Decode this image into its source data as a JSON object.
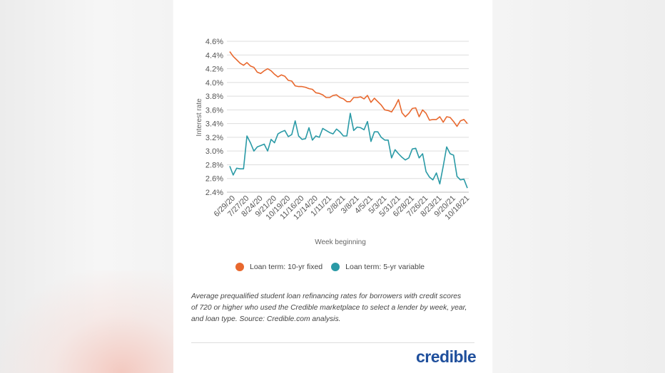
{
  "chart_data": {
    "type": "line",
    "title": "",
    "xlabel": "Week beginning",
    "ylabel": "Interest rate",
    "ylim": [
      2.4,
      4.6
    ],
    "yticks": [
      "2.4%",
      "2.6%",
      "2.8%",
      "3.0%",
      "3.2%",
      "3.4%",
      "3.6%",
      "3.8%",
      "4.0%",
      "4.2%",
      "4.4%",
      "4.6%"
    ],
    "grid": true,
    "legend_position": "bottom",
    "xtick_labels": [
      "6/29/20",
      "7/27/20",
      "8/24/20",
      "9/21/20",
      "10/19/20",
      "11/16/20",
      "12/14/20",
      "1/11/21",
      "2/8/21",
      "3/8/21",
      "4/5/21",
      "5/3/21",
      "5/31/21",
      "6/28/21",
      "7/26/21",
      "8/23/21",
      "9/20/21",
      "10/18/21"
    ],
    "x": [
      "6/29/20",
      "7/6/20",
      "7/13/20",
      "7/20/20",
      "7/27/20",
      "8/3/20",
      "8/10/20",
      "8/17/20",
      "8/24/20",
      "8/31/20",
      "9/7/20",
      "9/14/20",
      "9/21/20",
      "9/28/20",
      "10/5/20",
      "10/12/20",
      "10/19/20",
      "10/26/20",
      "11/2/20",
      "11/9/20",
      "11/16/20",
      "11/23/20",
      "11/30/20",
      "12/7/20",
      "12/14/20",
      "12/21/20",
      "12/28/20",
      "1/4/21",
      "1/11/21",
      "1/18/21",
      "1/25/21",
      "2/1/21",
      "2/8/21",
      "2/15/21",
      "2/22/21",
      "3/1/21",
      "3/8/21",
      "3/15/21",
      "3/22/21",
      "3/29/21",
      "4/5/21",
      "4/12/21",
      "4/19/21",
      "4/26/21",
      "5/3/21",
      "5/10/21",
      "5/17/21",
      "5/24/21",
      "5/31/21",
      "6/7/21",
      "6/14/21",
      "6/21/21",
      "6/28/21",
      "7/5/21",
      "7/12/21",
      "7/19/21",
      "7/26/21",
      "8/2/21",
      "8/9/21",
      "8/16/21",
      "8/23/21",
      "8/30/21",
      "9/6/21",
      "9/13/21",
      "9/20/21",
      "9/27/21",
      "10/4/21",
      "10/11/21",
      "10/18/21",
      "10/25/21"
    ],
    "series": [
      {
        "name": "Loan term: 10-yr fixed",
        "color": "#e8682e",
        "values": [
          4.45,
          4.38,
          4.33,
          4.28,
          4.25,
          4.29,
          4.24,
          4.22,
          4.15,
          4.13,
          4.17,
          4.2,
          4.17,
          4.12,
          4.08,
          4.11,
          4.09,
          4.03,
          4.02,
          3.95,
          3.94,
          3.94,
          3.93,
          3.91,
          3.9,
          3.85,
          3.84,
          3.82,
          3.78,
          3.78,
          3.81,
          3.82,
          3.78,
          3.76,
          3.72,
          3.72,
          3.78,
          3.78,
          3.79,
          3.76,
          3.81,
          3.71,
          3.77,
          3.72,
          3.67,
          3.6,
          3.59,
          3.57,
          3.65,
          3.75,
          3.56,
          3.5,
          3.55,
          3.62,
          3.63,
          3.5,
          3.6,
          3.55,
          3.45,
          3.46,
          3.46,
          3.5,
          3.42,
          3.5,
          3.49,
          3.43,
          3.36,
          3.44,
          3.46,
          3.4
        ]
      },
      {
        "name": "Loan term: 5-yr variable",
        "color": "#2a9aa6",
        "values": [
          2.78,
          2.65,
          2.75,
          2.74,
          2.74,
          3.22,
          3.12,
          3.0,
          3.06,
          3.08,
          3.1,
          3.0,
          3.17,
          3.12,
          3.25,
          3.28,
          3.3,
          3.21,
          3.24,
          3.44,
          3.22,
          3.17,
          3.18,
          3.34,
          3.16,
          3.22,
          3.2,
          3.33,
          3.3,
          3.27,
          3.25,
          3.32,
          3.28,
          3.22,
          3.22,
          3.55,
          3.3,
          3.35,
          3.34,
          3.31,
          3.43,
          3.14,
          3.28,
          3.28,
          3.2,
          3.16,
          3.16,
          2.9,
          3.02,
          2.96,
          2.91,
          2.87,
          2.9,
          3.03,
          3.04,
          2.9,
          2.96,
          2.7,
          2.62,
          2.58,
          2.68,
          2.52,
          2.78,
          3.06,
          2.96,
          2.94,
          2.63,
          2.58,
          2.59,
          2.46
        ]
      }
    ]
  },
  "caption": {
    "line1": "Average prequalified student loan refinancing rates for borrowers with credit scores",
    "line2": "of 720 or higher who used the Credible marketplace to select a lender by week, year,",
    "line3": "and loan type. Source: Credible.com analysis."
  },
  "logo": {
    "text": "credible",
    "color": "#1f4f9c"
  }
}
